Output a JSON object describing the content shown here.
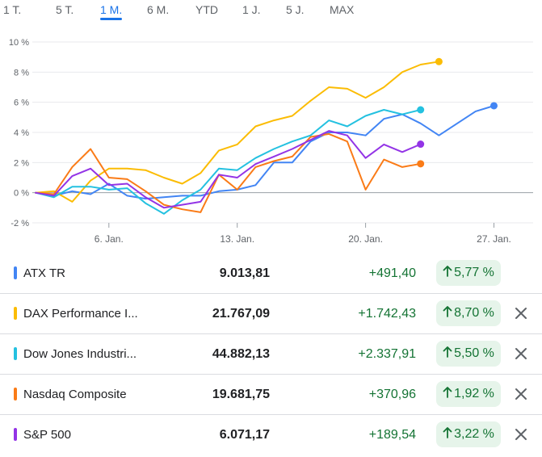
{
  "tabs": [
    {
      "label": "1 T.",
      "active": false
    },
    {
      "label": "5 T.",
      "active": false
    },
    {
      "label": "1 M.",
      "active": true
    },
    {
      "label": "6 M.",
      "active": false
    },
    {
      "label": "YTD",
      "active": false
    },
    {
      "label": "1 J.",
      "active": false
    },
    {
      "label": "5 J.",
      "active": false
    },
    {
      "label": "MAX",
      "active": false
    }
  ],
  "chart_data": {
    "type": "line",
    "title": "",
    "xlabel": "",
    "ylabel": "",
    "ylim": [
      -2,
      10
    ],
    "y_ticks": [
      -2,
      0,
      2,
      4,
      6,
      8,
      10
    ],
    "y_tick_labels": [
      "-2 %",
      "0 %",
      "2 %",
      "4 %",
      "6 %",
      "8 %",
      "10 %"
    ],
    "x_ticks": [
      {
        "x": 6,
        "label": "6. Jan."
      },
      {
        "x": 13,
        "label": "13. Jan."
      },
      {
        "x": 20,
        "label": "20. Jan."
      },
      {
        "x": 27,
        "label": "27. Jan."
      }
    ],
    "grid": true,
    "series": [
      {
        "name": "ATX TR",
        "color": "#4285f4",
        "points": [
          [
            2,
            0
          ],
          [
            3,
            -0.2
          ],
          [
            4,
            0.1
          ],
          [
            5,
            -0.1
          ],
          [
            6,
            0.6
          ],
          [
            7,
            -0.2
          ],
          [
            8,
            -0.4
          ],
          [
            9,
            -0.3
          ],
          [
            10,
            -0.2
          ],
          [
            11,
            -0.2
          ],
          [
            12,
            0.1
          ],
          [
            13,
            0.2
          ],
          [
            14,
            0.5
          ],
          [
            15,
            2.0
          ],
          [
            16,
            2.0
          ],
          [
            17,
            3.4
          ],
          [
            18,
            4.0
          ],
          [
            19,
            4.0
          ],
          [
            20,
            3.8
          ],
          [
            21,
            4.9
          ],
          [
            22,
            5.2
          ],
          [
            23,
            4.6
          ],
          [
            24,
            3.8
          ],
          [
            25,
            4.6
          ],
          [
            26,
            5.4
          ],
          [
            27,
            5.77
          ]
        ]
      },
      {
        "name": "DAX Performance I...",
        "color": "#fbbc04",
        "points": [
          [
            2,
            0
          ],
          [
            3,
            0.1
          ],
          [
            4,
            -0.6
          ],
          [
            5,
            0.8
          ],
          [
            6,
            1.6
          ],
          [
            7,
            1.6
          ],
          [
            8,
            1.5
          ],
          [
            9,
            1.0
          ],
          [
            10,
            0.6
          ],
          [
            11,
            1.3
          ],
          [
            12,
            2.8
          ],
          [
            13,
            3.2
          ],
          [
            14,
            4.4
          ],
          [
            15,
            4.8
          ],
          [
            16,
            5.1
          ],
          [
            17,
            6.1
          ],
          [
            18,
            7.0
          ],
          [
            19,
            6.9
          ],
          [
            20,
            6.3
          ],
          [
            21,
            7.0
          ],
          [
            22,
            8.0
          ],
          [
            23,
            8.5
          ],
          [
            24,
            8.7
          ]
        ]
      },
      {
        "name": "Dow Jones Industri...",
        "color": "#24c1e0",
        "points": [
          [
            2,
            0
          ],
          [
            3,
            -0.3
          ],
          [
            4,
            0.4
          ],
          [
            5,
            0.4
          ],
          [
            6,
            0.2
          ],
          [
            7,
            0.3
          ],
          [
            8,
            -0.7
          ],
          [
            9,
            -1.4
          ],
          [
            10,
            -0.5
          ],
          [
            11,
            0.2
          ],
          [
            12,
            1.6
          ],
          [
            13,
            1.5
          ],
          [
            14,
            2.3
          ],
          [
            15,
            2.9
          ],
          [
            16,
            3.4
          ],
          [
            17,
            3.8
          ],
          [
            18,
            4.8
          ],
          [
            19,
            4.4
          ],
          [
            20,
            5.1
          ],
          [
            21,
            5.5
          ],
          [
            22,
            5.2
          ],
          [
            23,
            5.5
          ]
        ]
      },
      {
        "name": "Nasdaq Composite",
        "color": "#fa7b17",
        "points": [
          [
            2,
            0
          ],
          [
            3,
            -0.1
          ],
          [
            4,
            1.7
          ],
          [
            5,
            2.9
          ],
          [
            6,
            1.0
          ],
          [
            7,
            0.9
          ],
          [
            8,
            0.1
          ],
          [
            9,
            -0.8
          ],
          [
            10,
            -1.1
          ],
          [
            11,
            -1.3
          ],
          [
            12,
            1.2
          ],
          [
            13,
            0.2
          ],
          [
            14,
            1.7
          ],
          [
            15,
            2.1
          ],
          [
            16,
            2.4
          ],
          [
            17,
            3.7
          ],
          [
            18,
            3.9
          ],
          [
            19,
            3.4
          ],
          [
            20,
            0.2
          ],
          [
            21,
            2.2
          ],
          [
            22,
            1.7
          ],
          [
            23,
            1.92
          ]
        ]
      },
      {
        "name": "S&P 500",
        "color": "#9334e6",
        "points": [
          [
            2,
            0
          ],
          [
            3,
            -0.2
          ],
          [
            4,
            1.1
          ],
          [
            5,
            1.6
          ],
          [
            6,
            0.5
          ],
          [
            7,
            0.6
          ],
          [
            8,
            -0.3
          ],
          [
            9,
            -1.0
          ],
          [
            10,
            -0.8
          ],
          [
            11,
            -0.6
          ],
          [
            12,
            1.2
          ],
          [
            13,
            1.0
          ],
          [
            14,
            1.9
          ],
          [
            15,
            2.4
          ],
          [
            16,
            2.9
          ],
          [
            17,
            3.5
          ],
          [
            18,
            4.1
          ],
          [
            19,
            3.8
          ],
          [
            20,
            2.3
          ],
          [
            21,
            3.2
          ],
          [
            22,
            2.7
          ],
          [
            23,
            3.22
          ]
        ]
      }
    ]
  },
  "rows": [
    {
      "name": "ATX TR",
      "color": "#4285f4",
      "price": "9.013,81",
      "change": "+491,40",
      "percent": "5,77 %",
      "removable": false
    },
    {
      "name": "DAX Performance I...",
      "color": "#fbbc04",
      "price": "21.767,09",
      "change": "+1.742,43",
      "percent": "8,70 %",
      "removable": true
    },
    {
      "name": "Dow Jones Industri...",
      "color": "#24c1e0",
      "price": "44.882,13",
      "change": "+2.337,91",
      "percent": "5,50 %",
      "removable": true
    },
    {
      "name": "Nasdaq Composite",
      "color": "#fa7b17",
      "price": "19.681,75",
      "change": "+370,96",
      "percent": "1,92 %",
      "removable": true
    },
    {
      "name": "S&P 500",
      "color": "#9334e6",
      "price": "6.071,17",
      "change": "+189,54",
      "percent": "3,22 %",
      "removable": true
    }
  ],
  "icons": {
    "trend": "arrow-up-icon",
    "remove": "close-icon"
  },
  "colors": {
    "positive": "#137333",
    "positive_bg": "#e6f4ea",
    "accent": "#1a73e8"
  }
}
